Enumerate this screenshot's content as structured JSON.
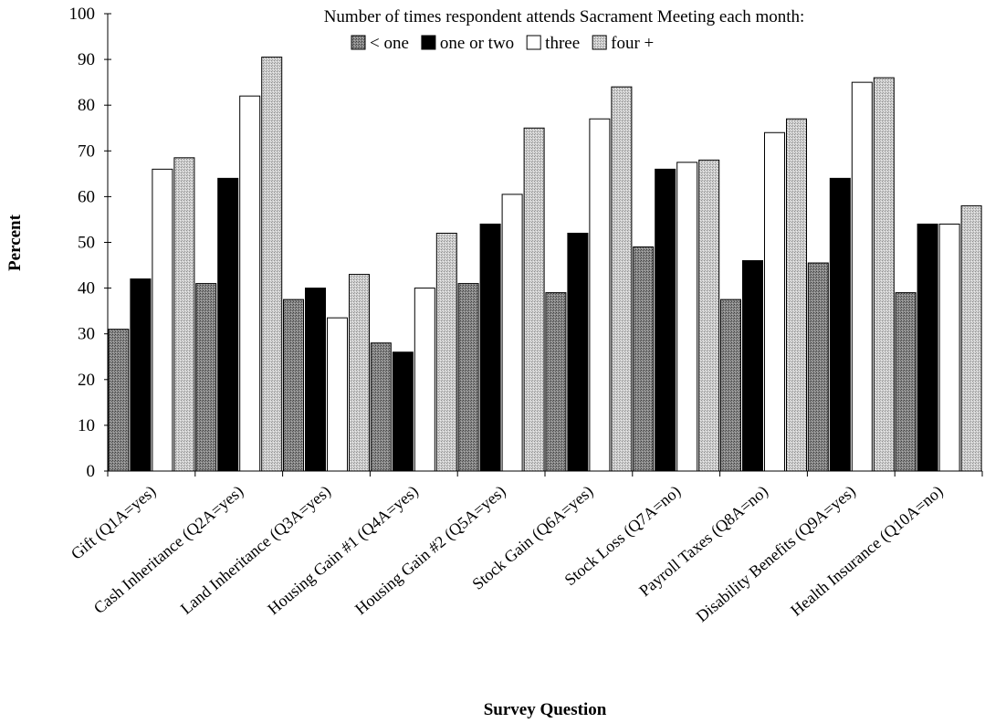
{
  "chart_data": {
    "type": "bar",
    "title": "",
    "xlabel": "Survey Question",
    "ylabel": "Percent",
    "ylim": [
      0,
      100
    ],
    "yticks": [
      0,
      10,
      20,
      30,
      40,
      50,
      60,
      70,
      80,
      90,
      100
    ],
    "grid": false,
    "legend_title": "Number of times respondent attends Sacrament Meeting each month:",
    "legend_position": "top",
    "categories": [
      "Gift (Q1A=yes)",
      "Cash Inheritance (Q2A=yes)",
      "Land Inheritance (Q3A=yes)",
      "Housing Gain #1 (Q4A=yes)",
      "Housing Gain #2 (Q5A=yes)",
      "Stock Gain (Q6A=yes)",
      "Stock Loss (Q7A=no)",
      "Payroll Taxes (Q8A=no)",
      "Disability Benefits (Q9A=yes)",
      "Health Insurance (Q10A=no)"
    ],
    "series": [
      {
        "name": "< one",
        "color": "#7a7a7a",
        "pattern": "dark-stipple",
        "values": [
          31,
          41,
          37.5,
          28,
          41,
          39,
          49,
          37.5,
          45.5,
          39
        ]
      },
      {
        "name": "one or two",
        "color": "#000000",
        "pattern": "solid",
        "values": [
          42,
          64,
          40,
          26,
          54,
          52,
          66,
          46,
          64,
          54
        ]
      },
      {
        "name": "three",
        "color": "#ffffff",
        "pattern": "solid",
        "values": [
          66,
          82,
          33.5,
          40,
          60.5,
          77,
          67.5,
          74,
          85,
          54
        ]
      },
      {
        "name": "four +",
        "color": "#c8c8c8",
        "pattern": "light-stipple",
        "values": [
          68.5,
          90.5,
          43,
          52,
          75,
          84,
          68,
          77,
          86,
          58
        ]
      }
    ]
  }
}
